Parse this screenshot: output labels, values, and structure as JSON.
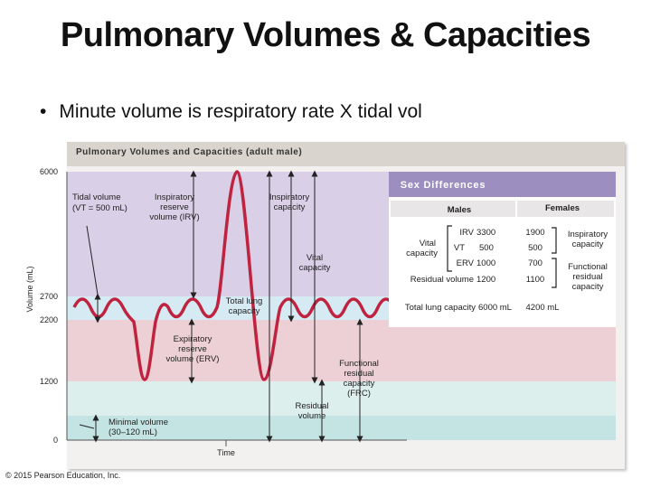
{
  "slide": {
    "title": "Pulmonary Volumes & Capacities",
    "bullet": "Minute volume is respiratory rate X tidal vol",
    "copyright": "© 2015 Pearson Education, Inc."
  },
  "figure": {
    "title": "Pulmonary Volumes and Capacities (adult male)",
    "y_axis_label": "Volume (mL)",
    "x_axis_label": "Time",
    "y_ticks": [
      "6000",
      "2700",
      "2200",
      "1200",
      "0"
    ],
    "colors": {
      "irv_band": "#d9cfe6",
      "tidal_band": "#d6eaf4",
      "erv_band": "#ecd0d6",
      "residual_upper_band": "#dcefec",
      "residual_lower_band": "#c3e4e2",
      "trace": "#c0233f",
      "sex_header": "#9c8fbf"
    },
    "labels": {
      "tidal_line1": "Tidal volume",
      "tidal_line2": "(VT = 500 mL)",
      "irv_line1": "Inspiratory",
      "irv_line2": "reserve",
      "irv_line3": "volume (IRV)",
      "insp_cap_line1": "Inspiratory",
      "insp_cap_line2": "capacity",
      "vital_line1": "Vital",
      "vital_line2": "capacity",
      "tlc_line1": "Total lung",
      "tlc_line2": "capacity",
      "erv_line1": "Expiratory",
      "erv_line2": "reserve",
      "erv_line3": "volume (ERV)",
      "frc_line1": "Functional",
      "frc_line2": "residual",
      "frc_line3": "capacity",
      "frc_line4": "(FRC)",
      "rv_line1": "Residual",
      "rv_line2": "volume",
      "min_line1": "Minimal volume",
      "min_line2": "(30–120 mL)"
    }
  },
  "sex_differences": {
    "header": "Sex Differences",
    "col_males": "Males",
    "col_females": "Females",
    "vital_line1": "Vital",
    "vital_line2": "capacity",
    "irv_label": "IRV",
    "irv_male": "3300",
    "irv_female": "1900",
    "vt_label": "VT",
    "vt_male": "500",
    "vt_female": "500",
    "erv_label": "ERV",
    "erv_male": "1000",
    "erv_female": "700",
    "rv_label": "Residual volume",
    "rv_male": "1200",
    "rv_female": "1100",
    "tlc_label": "Total lung capacity",
    "tlc_male": "6000 mL",
    "tlc_female": "4200 mL",
    "bracket_ic_line1": "Inspiratory",
    "bracket_ic_line2": "capacity",
    "bracket_frc_line1": "Functional",
    "bracket_frc_line2": "residual",
    "bracket_frc_line3": "capacity"
  }
}
